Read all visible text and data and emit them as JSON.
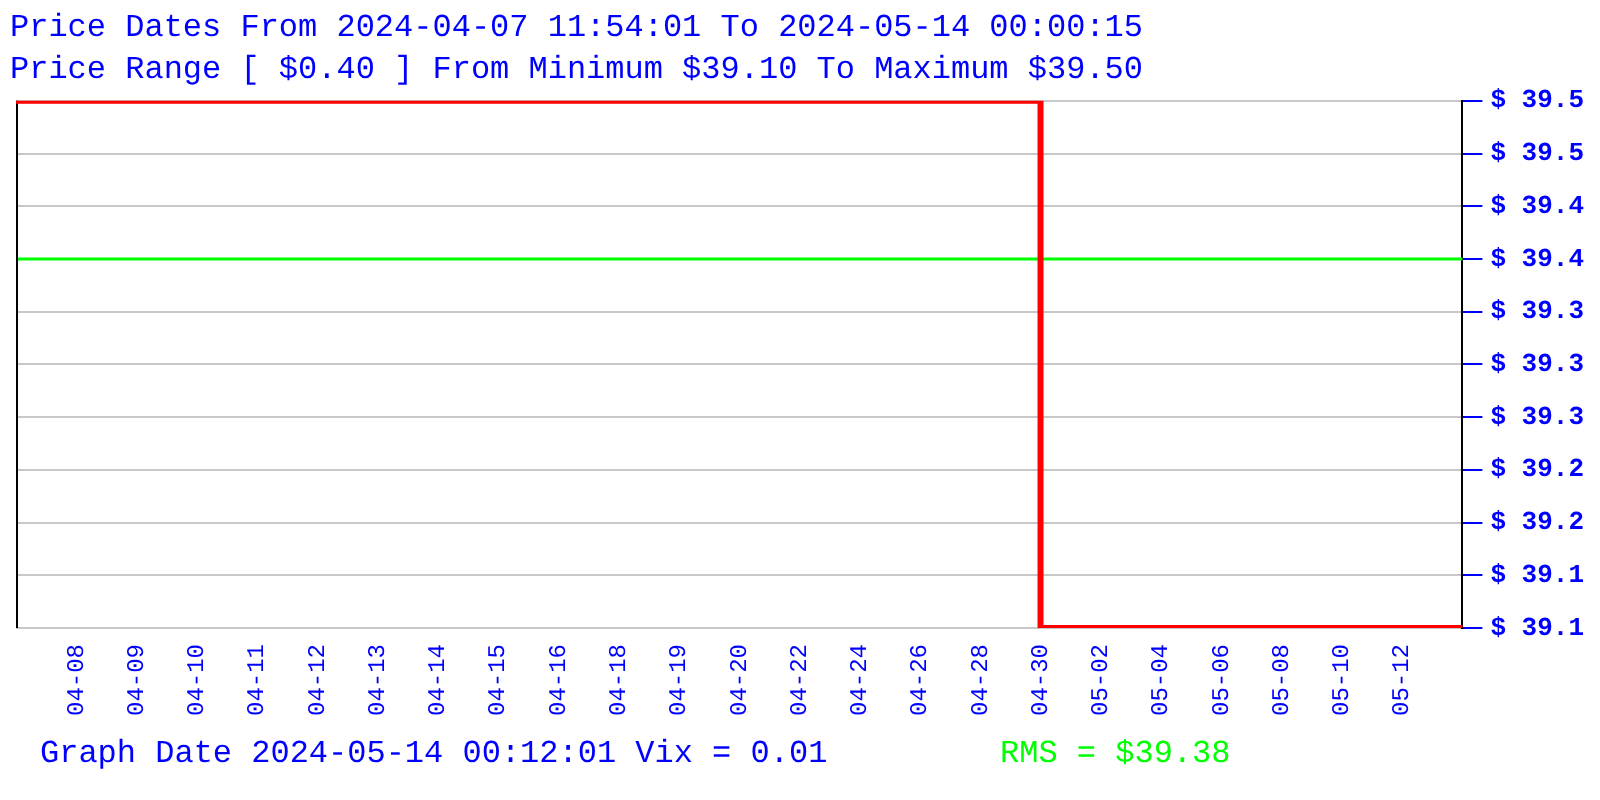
{
  "chart_data": {
    "type": "step",
    "title": "Price Dates From 2024-04-07 11:54:01 To 2024-05-14 00:00:15",
    "subtitle": "Price Range [ $0.40 ] From Minimum $39.10 To Maximum $39.50",
    "categories": [
      null,
      "04-08",
      "04-09",
      "04-10",
      "04-11",
      "04-12",
      "04-13",
      "04-14",
      "04-15",
      "04-16",
      "04-18",
      "04-19",
      "04-20",
      "04-22",
      "04-24",
      "04-26",
      "04-28",
      "04-30",
      "05-02",
      "05-04",
      "05-06",
      "05-08",
      "05-10",
      "05-12",
      null
    ],
    "series": [
      {
        "color": "#ff0000",
        "values": [
          39.5,
          39.5,
          39.5,
          39.5,
          39.5,
          39.5,
          39.5,
          39.5,
          39.5,
          39.5,
          39.5,
          39.5,
          39.5,
          39.5,
          39.5,
          39.5,
          39.5,
          39.5,
          39.1,
          39.1,
          39.1,
          39.1,
          39.1,
          39.1,
          39.1
        ]
      }
    ],
    "ylim": [
      39.1,
      39.5
    ],
    "yticks": [
      {
        "value": 39.1,
        "label": "$ 39.1"
      },
      {
        "value": 39.14,
        "label": "$ 39.1"
      },
      {
        "value": 39.18,
        "label": "$ 39.2"
      },
      {
        "value": 39.22,
        "label": "$ 39.2"
      },
      {
        "value": 39.26,
        "label": "$ 39.3"
      },
      {
        "value": 39.3,
        "label": "$ 39.3"
      },
      {
        "value": 39.34,
        "label": "$ 39.3"
      },
      {
        "value": 39.38,
        "label": "$ 39.4"
      },
      {
        "value": 39.42,
        "label": "$ 39.4"
      },
      {
        "value": 39.46,
        "label": "$ 39.5"
      },
      {
        "value": 39.5,
        "label": "$ 39.5"
      }
    ],
    "ref_lines": [
      {
        "axis": "y",
        "value": 39.38,
        "color": "#00ff00"
      }
    ],
    "annotations": [
      "Graph Date 2024-05-14 00:12:01 Vix = 0.01",
      "RMS = $39.38"
    ],
    "grid": "y",
    "legend": false,
    "marker": "none",
    "line_style": "solid"
  }
}
